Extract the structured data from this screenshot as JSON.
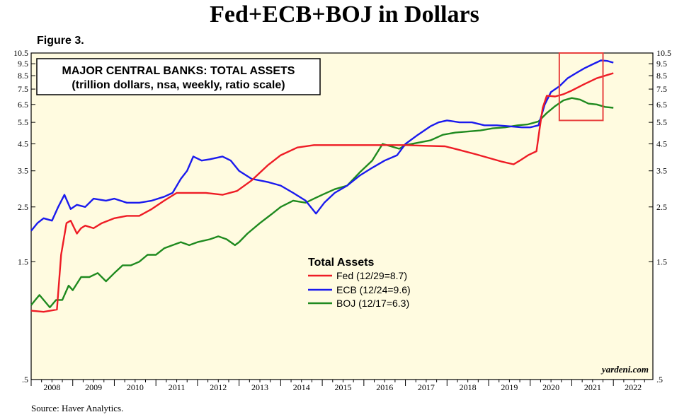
{
  "title": "Fed+ECB+BOJ in Dollars",
  "figure_label": "Figure 3.",
  "source": "Source: Haver Analytics.",
  "watermark": "yardeni.com",
  "colors": {
    "background": "#fffbe0",
    "fed": "#ee1c25",
    "ecb": "#1a1aee",
    "boj": "#1f8a1f",
    "highlight": "#e8423f"
  },
  "chart_data": {
    "type": "line",
    "title": "MAJOR CENTRAL BANKS: TOTAL ASSETS",
    "subtitle": "(trillion dollars, nsa, weekly, ratio scale)",
    "yscale": "log",
    "ylim": [
      0.5,
      10.5
    ],
    "xlim": [
      2008.0,
      2022.95
    ],
    "y_ticks": [
      ".5",
      "1.5",
      "2.5",
      "3.5",
      "4.5",
      "5.5",
      "6.5",
      "7.5",
      "8.5",
      "9.5",
      "10.5"
    ],
    "y_tick_values": [
      0.5,
      1.5,
      2.5,
      3.5,
      4.5,
      5.5,
      6.5,
      7.5,
      8.5,
      9.5,
      10.5
    ],
    "x_tick_labels": [
      "2008",
      "2009",
      "2010",
      "2011",
      "2012",
      "2013",
      "2014",
      "2015",
      "2016",
      "2017",
      "2018",
      "2019",
      "2020",
      "2021",
      "2022"
    ],
    "grid": false,
    "legend": {
      "title": "Total Assets",
      "placement": "center",
      "entries": [
        "Fed (12/29=8.7)",
        "ECB (12/24=9.6)",
        "BOJ (12/17=6.3)"
      ]
    },
    "highlight_box": {
      "x_range": [
        2020.7,
        2021.75
      ],
      "y_range": [
        5.6,
        10.5
      ]
    },
    "series": [
      {
        "name": "Fed (12/29=8.7)",
        "points": [
          [
            2008.0,
            0.95
          ],
          [
            2008.3,
            0.94
          ],
          [
            2008.62,
            0.96
          ],
          [
            2008.72,
            1.6
          ],
          [
            2008.85,
            2.15
          ],
          [
            2008.95,
            2.2
          ],
          [
            2009.1,
            1.95
          ],
          [
            2009.2,
            2.05
          ],
          [
            2009.3,
            2.1
          ],
          [
            2009.5,
            2.05
          ],
          [
            2009.7,
            2.15
          ],
          [
            2010.0,
            2.25
          ],
          [
            2010.3,
            2.3
          ],
          [
            2010.6,
            2.3
          ],
          [
            2010.9,
            2.45
          ],
          [
            2011.2,
            2.65
          ],
          [
            2011.5,
            2.85
          ],
          [
            2011.8,
            2.85
          ],
          [
            2012.2,
            2.85
          ],
          [
            2012.6,
            2.8
          ],
          [
            2012.95,
            2.9
          ],
          [
            2013.3,
            3.2
          ],
          [
            2013.7,
            3.7
          ],
          [
            2014.0,
            4.05
          ],
          [
            2014.4,
            4.35
          ],
          [
            2014.8,
            4.45
          ],
          [
            2015.5,
            4.45
          ],
          [
            2016.0,
            4.45
          ],
          [
            2016.5,
            4.45
          ],
          [
            2017.0,
            4.45
          ],
          [
            2017.5,
            4.42
          ],
          [
            2017.95,
            4.4
          ],
          [
            2018.3,
            4.25
          ],
          [
            2018.7,
            4.08
          ],
          [
            2019.0,
            3.95
          ],
          [
            2019.3,
            3.82
          ],
          [
            2019.6,
            3.72
          ],
          [
            2019.75,
            3.85
          ],
          [
            2019.95,
            4.05
          ],
          [
            2020.15,
            4.2
          ],
          [
            2020.22,
            5.1
          ],
          [
            2020.3,
            6.3
          ],
          [
            2020.4,
            7.05
          ],
          [
            2020.6,
            7.0
          ],
          [
            2020.8,
            7.15
          ],
          [
            2021.0,
            7.4
          ],
          [
            2021.3,
            7.85
          ],
          [
            2021.6,
            8.3
          ],
          [
            2021.85,
            8.55
          ],
          [
            2022.0,
            8.7
          ]
        ]
      },
      {
        "name": "ECB (12/24=9.6)",
        "points": [
          [
            2008.0,
            2.0
          ],
          [
            2008.15,
            2.15
          ],
          [
            2008.3,
            2.25
          ],
          [
            2008.5,
            2.2
          ],
          [
            2008.65,
            2.5
          ],
          [
            2008.8,
            2.8
          ],
          [
            2008.95,
            2.45
          ],
          [
            2009.1,
            2.55
          ],
          [
            2009.3,
            2.5
          ],
          [
            2009.5,
            2.7
          ],
          [
            2009.8,
            2.65
          ],
          [
            2010.0,
            2.7
          ],
          [
            2010.3,
            2.6
          ],
          [
            2010.6,
            2.6
          ],
          [
            2010.9,
            2.65
          ],
          [
            2011.2,
            2.75
          ],
          [
            2011.4,
            2.85
          ],
          [
            2011.6,
            3.25
          ],
          [
            2011.75,
            3.5
          ],
          [
            2011.9,
            4.0
          ],
          [
            2012.1,
            3.85
          ],
          [
            2012.3,
            3.9
          ],
          [
            2012.6,
            4.0
          ],
          [
            2012.8,
            3.85
          ],
          [
            2013.0,
            3.5
          ],
          [
            2013.3,
            3.25
          ],
          [
            2013.7,
            3.15
          ],
          [
            2014.0,
            3.05
          ],
          [
            2014.3,
            2.85
          ],
          [
            2014.6,
            2.65
          ],
          [
            2014.85,
            2.35
          ],
          [
            2015.05,
            2.6
          ],
          [
            2015.3,
            2.85
          ],
          [
            2015.6,
            3.05
          ],
          [
            2015.9,
            3.35
          ],
          [
            2016.2,
            3.6
          ],
          [
            2016.5,
            3.85
          ],
          [
            2016.8,
            4.05
          ],
          [
            2017.0,
            4.5
          ],
          [
            2017.3,
            4.9
          ],
          [
            2017.6,
            5.3
          ],
          [
            2017.8,
            5.5
          ],
          [
            2018.0,
            5.6
          ],
          [
            2018.3,
            5.5
          ],
          [
            2018.6,
            5.5
          ],
          [
            2018.9,
            5.35
          ],
          [
            2019.2,
            5.35
          ],
          [
            2019.5,
            5.3
          ],
          [
            2019.8,
            5.25
          ],
          [
            2020.0,
            5.25
          ],
          [
            2020.2,
            5.35
          ],
          [
            2020.35,
            6.5
          ],
          [
            2020.5,
            7.3
          ],
          [
            2020.7,
            7.7
          ],
          [
            2020.9,
            8.3
          ],
          [
            2021.1,
            8.7
          ],
          [
            2021.3,
            9.1
          ],
          [
            2021.5,
            9.45
          ],
          [
            2021.7,
            9.8
          ],
          [
            2021.85,
            9.75
          ],
          [
            2022.0,
            9.6
          ]
        ]
      },
      {
        "name": "BOJ (12/17=6.3)",
        "points": [
          [
            2008.0,
            1.0
          ],
          [
            2008.1,
            1.05
          ],
          [
            2008.2,
            1.1
          ],
          [
            2008.3,
            1.05
          ],
          [
            2008.45,
            0.98
          ],
          [
            2008.6,
            1.05
          ],
          [
            2008.75,
            1.05
          ],
          [
            2008.9,
            1.2
          ],
          [
            2009.0,
            1.15
          ],
          [
            2009.2,
            1.3
          ],
          [
            2009.4,
            1.3
          ],
          [
            2009.6,
            1.35
          ],
          [
            2009.8,
            1.25
          ],
          [
            2010.0,
            1.35
          ],
          [
            2010.2,
            1.45
          ],
          [
            2010.4,
            1.45
          ],
          [
            2010.6,
            1.5
          ],
          [
            2010.8,
            1.6
          ],
          [
            2011.0,
            1.6
          ],
          [
            2011.2,
            1.7
          ],
          [
            2011.4,
            1.75
          ],
          [
            2011.6,
            1.8
          ],
          [
            2011.8,
            1.75
          ],
          [
            2012.0,
            1.8
          ],
          [
            2012.3,
            1.85
          ],
          [
            2012.5,
            1.9
          ],
          [
            2012.7,
            1.85
          ],
          [
            2012.9,
            1.75
          ],
          [
            2013.0,
            1.8
          ],
          [
            2013.2,
            1.95
          ],
          [
            2013.5,
            2.15
          ],
          [
            2013.8,
            2.35
          ],
          [
            2014.0,
            2.5
          ],
          [
            2014.3,
            2.65
          ],
          [
            2014.6,
            2.6
          ],
          [
            2014.8,
            2.7
          ],
          [
            2015.0,
            2.8
          ],
          [
            2015.3,
            2.95
          ],
          [
            2015.6,
            3.05
          ],
          [
            2015.9,
            3.45
          ],
          [
            2016.2,
            3.85
          ],
          [
            2016.45,
            4.5
          ],
          [
            2016.65,
            4.4
          ],
          [
            2016.85,
            4.3
          ],
          [
            2017.0,
            4.45
          ],
          [
            2017.3,
            4.55
          ],
          [
            2017.6,
            4.65
          ],
          [
            2017.9,
            4.9
          ],
          [
            2018.2,
            5.0
          ],
          [
            2018.5,
            5.05
          ],
          [
            2018.8,
            5.1
          ],
          [
            2019.1,
            5.2
          ],
          [
            2019.4,
            5.25
          ],
          [
            2019.7,
            5.35
          ],
          [
            2019.95,
            5.4
          ],
          [
            2020.2,
            5.55
          ],
          [
            2020.4,
            6.0
          ],
          [
            2020.6,
            6.4
          ],
          [
            2020.8,
            6.75
          ],
          [
            2021.0,
            6.9
          ],
          [
            2021.2,
            6.8
          ],
          [
            2021.4,
            6.55
          ],
          [
            2021.6,
            6.5
          ],
          [
            2021.8,
            6.35
          ],
          [
            2022.0,
            6.3
          ]
        ]
      }
    ]
  }
}
